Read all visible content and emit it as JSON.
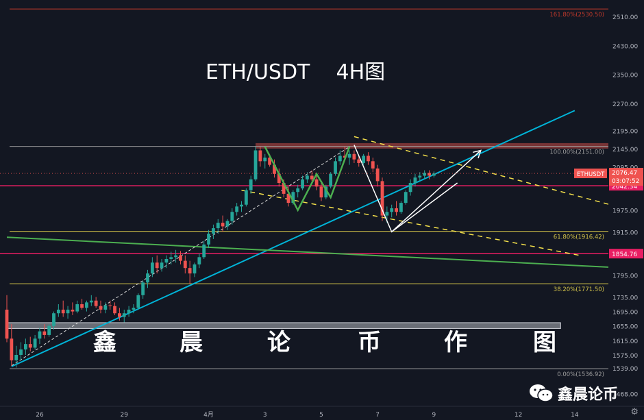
{
  "title": "ETH/USDT    4H图",
  "watermark_chars": [
    "鑫",
    "晨",
    "论",
    "币",
    "作",
    "图"
  ],
  "brand": {
    "name": "鑫晨论币",
    "icon": "wechat-icon"
  },
  "settings_icon": "gear-icon",
  "colors": {
    "background": "#131722",
    "bull": "#26a69a",
    "bear": "#ef5350",
    "trendline_cyan": "#00b4d8",
    "trendline_green": "#4caf50",
    "support_pink": "#e91e63",
    "fib_yellow": "#d4c44a",
    "resistance_zone": "#8b3a3a",
    "dash_yellow": "#f5e14b"
  },
  "chart_data": {
    "type": "candlestick",
    "symbol": "ETHUSDT",
    "timeframe": "4H",
    "ylim": [
      1468,
      2550
    ],
    "y_ticks": [
      2510,
      2430,
      2350,
      2270,
      2195,
      2145,
      2095,
      2042.34,
      1975,
      1915,
      1854.76,
      1795,
      1735,
      1695,
      1655,
      1615,
      1575,
      1539,
      1468
    ],
    "y_tick_labels": [
      "2510.00",
      "2430.00",
      "2350.00",
      "2270.00",
      "2195.00",
      "2145.00",
      "2095.00",
      "2042.34",
      "1975.00",
      "1915.00",
      "1854.76",
      "1795.00",
      "1735.00",
      "1695.00",
      "1655.00",
      "1615.00",
      "1575.00",
      "1539.00",
      "1468.00"
    ],
    "x_ticks": [
      {
        "label": "26",
        "bar": 7
      },
      {
        "label": "29",
        "bar": 25
      },
      {
        "label": "4月",
        "bar": 43
      },
      {
        "label": "3",
        "bar": 55
      },
      {
        "label": "5",
        "bar": 67
      },
      {
        "label": "7",
        "bar": 79
      },
      {
        "label": "9",
        "bar": 91
      },
      {
        "label": "12",
        "bar": 109
      },
      {
        "label": "14",
        "bar": 121
      }
    ],
    "bar_range": [
      0,
      130
    ],
    "price_label": {
      "value": "2076.47",
      "countdown": "03:07:52",
      "name": "ETHUSDT"
    },
    "candles": [
      [
        1700,
        1740,
        1610,
        1620
      ],
      [
        1620,
        1660,
        1545,
        1560
      ],
      [
        1560,
        1600,
        1540,
        1575
      ],
      [
        1575,
        1610,
        1560,
        1590
      ],
      [
        1590,
        1620,
        1575,
        1605
      ],
      [
        1605,
        1625,
        1585,
        1595
      ],
      [
        1595,
        1630,
        1590,
        1620
      ],
      [
        1620,
        1650,
        1605,
        1640
      ],
      [
        1640,
        1660,
        1620,
        1630
      ],
      [
        1630,
        1660,
        1625,
        1655
      ],
      [
        1655,
        1695,
        1645,
        1690
      ],
      [
        1690,
        1715,
        1680,
        1700
      ],
      [
        1700,
        1725,
        1680,
        1690
      ],
      [
        1690,
        1710,
        1675,
        1700
      ],
      [
        1700,
        1720,
        1685,
        1695
      ],
      [
        1695,
        1725,
        1690,
        1715
      ],
      [
        1715,
        1730,
        1700,
        1705
      ],
      [
        1705,
        1725,
        1695,
        1720
      ],
      [
        1720,
        1740,
        1710,
        1725
      ],
      [
        1725,
        1735,
        1705,
        1710
      ],
      [
        1710,
        1725,
        1690,
        1700
      ],
      [
        1700,
        1720,
        1690,
        1712
      ],
      [
        1712,
        1725,
        1700,
        1710
      ],
      [
        1710,
        1720,
        1685,
        1690
      ],
      [
        1690,
        1705,
        1670,
        1680
      ],
      [
        1680,
        1700,
        1665,
        1690
      ],
      [
        1690,
        1710,
        1680,
        1700
      ],
      [
        1700,
        1715,
        1690,
        1705
      ],
      [
        1705,
        1745,
        1700,
        1740
      ],
      [
        1740,
        1780,
        1730,
        1775
      ],
      [
        1775,
        1810,
        1760,
        1800
      ],
      [
        1800,
        1845,
        1790,
        1830
      ],
      [
        1830,
        1850,
        1800,
        1815
      ],
      [
        1815,
        1840,
        1805,
        1830
      ],
      [
        1830,
        1850,
        1815,
        1840
      ],
      [
        1840,
        1860,
        1825,
        1845
      ],
      [
        1845,
        1865,
        1830,
        1850
      ],
      [
        1850,
        1862,
        1825,
        1835
      ],
      [
        1835,
        1850,
        1800,
        1815
      ],
      [
        1815,
        1835,
        1770,
        1800
      ],
      [
        1800,
        1830,
        1790,
        1825
      ],
      [
        1825,
        1855,
        1815,
        1845
      ],
      [
        1845,
        1890,
        1840,
        1880
      ],
      [
        1880,
        1920,
        1870,
        1910
      ],
      [
        1910,
        1935,
        1895,
        1925
      ],
      [
        1925,
        1950,
        1910,
        1940
      ],
      [
        1940,
        1960,
        1915,
        1930
      ],
      [
        1930,
        1950,
        1920,
        1945
      ],
      [
        1945,
        1980,
        1935,
        1970
      ],
      [
        1970,
        1995,
        1960,
        1985
      ],
      [
        1985,
        2000,
        1970,
        1990
      ],
      [
        1990,
        2035,
        1985,
        2030
      ],
      [
        2030,
        2070,
        2020,
        2060
      ],
      [
        2060,
        2150,
        2055,
        2140
      ],
      [
        2140,
        2150,
        2095,
        2110
      ],
      [
        2110,
        2130,
        2090,
        2120
      ],
      [
        2120,
        2130,
        2095,
        2100
      ],
      [
        2100,
        2115,
        2065,
        2075
      ],
      [
        2075,
        2090,
        2040,
        2050
      ],
      [
        2050,
        2060,
        2010,
        2020
      ],
      [
        2020,
        2040,
        1985,
        1995
      ],
      [
        1995,
        2030,
        1990,
        2025
      ],
      [
        2025,
        2045,
        2010,
        2035
      ],
      [
        2035,
        2070,
        2030,
        2060
      ],
      [
        2060,
        2080,
        2050,
        2070
      ],
      [
        2070,
        2085,
        2055,
        2060
      ],
      [
        2060,
        2070,
        2030,
        2040
      ],
      [
        2040,
        2055,
        2000,
        2010
      ],
      [
        2010,
        2045,
        2005,
        2040
      ],
      [
        2040,
        2080,
        2035,
        2075
      ],
      [
        2075,
        2120,
        2070,
        2110
      ],
      [
        2110,
        2140,
        2100,
        2125
      ],
      [
        2125,
        2150,
        2110,
        2120
      ],
      [
        2120,
        2140,
        2100,
        2130
      ],
      [
        2130,
        2140,
        2105,
        2115
      ],
      [
        2115,
        2125,
        2095,
        2105
      ],
      [
        2105,
        2130,
        2100,
        2125
      ],
      [
        2125,
        2135,
        2100,
        2110
      ],
      [
        2110,
        2120,
        2080,
        2090
      ],
      [
        2090,
        2100,
        2040,
        2055
      ],
      [
        2055,
        2065,
        1945,
        1960
      ],
      [
        1960,
        1985,
        1940,
        1970
      ],
      [
        1970,
        1990,
        1955,
        1980
      ],
      [
        1980,
        2000,
        1960,
        1970
      ],
      [
        1970,
        2000,
        1965,
        1995
      ],
      [
        1995,
        2030,
        1990,
        2025
      ],
      [
        2025,
        2060,
        2015,
        2050
      ],
      [
        2050,
        2075,
        2040,
        2065
      ],
      [
        2065,
        2080,
        2055,
        2070
      ],
      [
        2070,
        2085,
        2060,
        2078
      ],
      [
        2078,
        2085,
        2060,
        2070
      ],
      [
        2070,
        2082,
        2065,
        2076
      ]
    ],
    "horizontal_lines": [
      {
        "name": "fib-161",
        "value": 2530.5,
        "label": "161.80%(2530.50)",
        "color": "#c0392b"
      },
      {
        "name": "fib-100",
        "value": 2151.0,
        "label": "100.00%(2151.00)",
        "color": "#9e9e9e"
      },
      {
        "name": "fib-61",
        "value": 1916.42,
        "label": "61.80%(1916.42)",
        "color": "#d4c44a"
      },
      {
        "name": "fib-38",
        "value": 1771.5,
        "label": "38.20%(1771.50)",
        "color": "#d4c44a"
      },
      {
        "name": "fib-0",
        "value": 1536.92,
        "label": "0.00%(1536.92)",
        "color": "#9e9e9e"
      },
      {
        "name": "support-2042",
        "value": 2042.34,
        "label": "",
        "color": "#e91e63"
      },
      {
        "name": "support-1854",
        "value": 1854.76,
        "label": "",
        "color": "#e91e63"
      }
    ],
    "zones": [
      {
        "name": "resistance-zone",
        "y1": 2145,
        "y2": 2160,
        "x1": 53,
        "x2": 129,
        "color": "#8b3a3a"
      },
      {
        "name": "demand-zone",
        "y1": 1648,
        "y2": 1664,
        "x1": 0,
        "x2": 118,
        "color": "#b0b4bc"
      }
    ],
    "trendlines": [
      {
        "name": "cyan-uptrend",
        "p1": [
          1,
          1543
        ],
        "p2": [
          121,
          2250
        ],
        "color": "#00b4d8",
        "dash": false,
        "width": 2
      },
      {
        "name": "green-downtrend",
        "p1": [
          0,
          1900
        ],
        "p2": [
          143,
          1808
        ],
        "color": "#4caf50",
        "dash": false,
        "width": 2
      },
      {
        "name": "dashed-channel-top",
        "p1": [
          74,
          2178
        ],
        "p2": [
          130,
          1985
        ],
        "color": "#f5e14b",
        "dash": true,
        "width": 1.5
      },
      {
        "name": "dashed-channel-bottom",
        "p1": [
          50,
          2030
        ],
        "p2": [
          122,
          1850
        ],
        "color": "#f5e14b",
        "dash": true,
        "width": 1.5
      },
      {
        "name": "white-dashed-rise",
        "p1": [
          1,
          1545
        ],
        "p2": [
          73,
          2150
        ],
        "color": "#dddddd",
        "dash": true,
        "width": 1
      }
    ],
    "patterns": [
      {
        "name": "green-w-pattern",
        "color": "#4caf50",
        "points": [
          [
            55,
            2150
          ],
          [
            62,
            1975
          ],
          [
            66,
            2075
          ],
          [
            69,
            2010
          ],
          [
            73,
            2150
          ]
        ]
      },
      {
        "name": "white-v-pattern",
        "color": "#ffffff",
        "points": [
          [
            74,
            2155
          ],
          [
            82,
            1915
          ],
          [
            96,
            2050
          ]
        ]
      },
      {
        "name": "white-arrow",
        "color": "#ffffff",
        "points": [
          [
            82,
            1915
          ],
          [
            101,
            2140
          ]
        ]
      }
    ]
  }
}
